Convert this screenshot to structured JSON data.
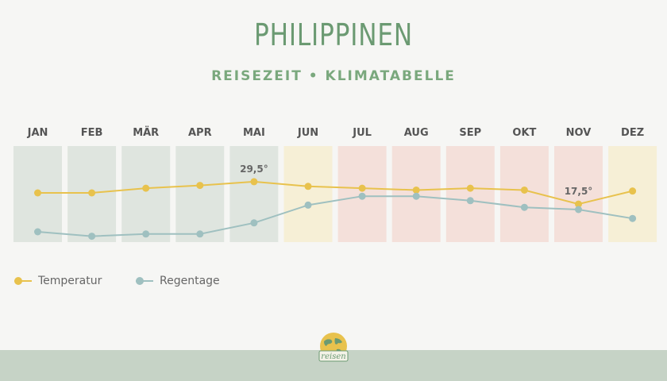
{
  "header": {
    "title": "PHILIPPINEN",
    "subtitle": "REISEZEIT • KLIMATABELLE"
  },
  "colors": {
    "good": "#dfe5df",
    "medium": "#f6efd6",
    "bad": "#f4e0da",
    "temperature": "#e8c24d",
    "rain": "#9fc0c0",
    "footer": "#c6d3c6"
  },
  "chart_data": {
    "type": "line",
    "categories": [
      "JAN",
      "FEB",
      "MÄR",
      "APR",
      "MAI",
      "JUN",
      "JUL",
      "AUG",
      "SEP",
      "OKT",
      "NOV",
      "DEZ"
    ],
    "month_rating": [
      "good",
      "good",
      "good",
      "good",
      "good",
      "medium",
      "bad",
      "bad",
      "bad",
      "bad",
      "bad",
      "medium"
    ],
    "series": [
      {
        "name": "Temperatur",
        "values": [
          23.5,
          23.5,
          26,
          27.5,
          29.5,
          27,
          26,
          25,
          26,
          25,
          17.5,
          24.5
        ]
      },
      {
        "name": "Regentage",
        "values": [
          3,
          1,
          2,
          2,
          7,
          15,
          19,
          19,
          17,
          14,
          13,
          9
        ]
      }
    ],
    "annotations": [
      {
        "series": 0,
        "index": 4,
        "text": "29,5°"
      },
      {
        "series": 0,
        "index": 10,
        "text": "17,5°"
      }
    ],
    "legend_position": "bottom-left"
  },
  "logo": {
    "text": "reisen"
  }
}
